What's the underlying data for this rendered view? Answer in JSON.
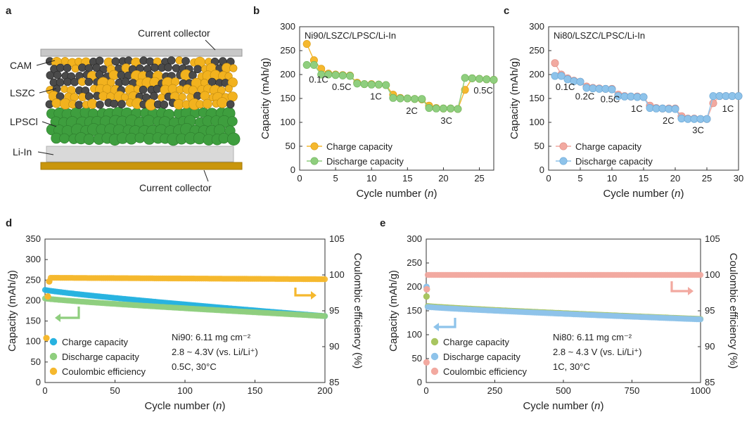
{
  "panel_letters": {
    "a": "a",
    "b": "b",
    "c": "c",
    "d": "d",
    "e": "e"
  },
  "schematic": {
    "label_top": "Current collector",
    "label_cam": "CAM",
    "label_lszc": "LSZC",
    "label_lpscl": "LPSCl",
    "label_liin": "Li-In",
    "label_bottom": "Current collector",
    "colors": {
      "cam": "#4a4a4a",
      "lszc": "#f2b21e",
      "lpscl": "#3e9e3e",
      "liin": "#d6d6d6",
      "collector_top": "#c8c8c8",
      "collector_bottom": "#c9960c"
    }
  },
  "colors": {
    "orange_marker": "#f5b82e",
    "green_marker": "#8fce7e",
    "pink_marker": "#f2a9a0",
    "blue_marker": "#8ec3ea",
    "cyan_marker": "#27b2e0",
    "olive_marker": "#a8c560",
    "arrow_green": "#8fce7e",
    "arrow_orange": "#f5b82e",
    "arrow_blue": "#8ec3ea",
    "arrow_pink": "#f2a9a0"
  },
  "chart_data": [
    {
      "id": "b",
      "type": "line",
      "xlabel": "Cycle number (n)",
      "ylabel": "Capacity (mAh/g)",
      "xlim": [
        0,
        27
      ],
      "ylim": [
        0,
        300
      ],
      "xticks": [
        0,
        5,
        10,
        15,
        20,
        25
      ],
      "yticks": [
        0,
        50,
        100,
        150,
        200,
        250,
        300
      ],
      "annotation": "Ni90/LSZC/LPSC/Li-In",
      "legend_position": "bottom-left",
      "series": [
        {
          "name": "Charge capacity",
          "color": "#f5b82e",
          "x": [
            1,
            2,
            3,
            4,
            5,
            6,
            7,
            8,
            9,
            10,
            11,
            12,
            13,
            14,
            15,
            16,
            17,
            18,
            19,
            20,
            21,
            22,
            23,
            24,
            25,
            26,
            27
          ],
          "y": [
            264,
            230,
            212,
            202,
            200,
            199,
            198,
            183,
            180,
            180,
            179,
            178,
            158,
            151,
            150,
            149,
            148,
            135,
            130,
            129,
            129,
            128,
            168,
            192,
            191,
            190,
            189
          ]
        },
        {
          "name": "Discharge capacity",
          "color": "#8fce7e",
          "x": [
            1,
            2,
            3,
            4,
            5,
            6,
            7,
            8,
            9,
            10,
            11,
            12,
            13,
            14,
            15,
            16,
            17,
            18,
            19,
            20,
            21,
            22,
            23,
            24,
            25,
            26,
            27
          ],
          "y": [
            220,
            220,
            200,
            200,
            199,
            198,
            197,
            181,
            180,
            179,
            179,
            178,
            151,
            150,
            150,
            149,
            149,
            130,
            129,
            129,
            129,
            128,
            193,
            192,
            191,
            190,
            189
          ]
        }
      ],
      "rate_labels": [
        {
          "text": "0.1C",
          "x": 1.3,
          "y": 183
        },
        {
          "text": "0.5C",
          "x": 4.5,
          "y": 168
        },
        {
          "text": "1C",
          "x": 9.8,
          "y": 148
        },
        {
          "text": "2C",
          "x": 14.8,
          "y": 118
        },
        {
          "text": "3C",
          "x": 19.6,
          "y": 97
        },
        {
          "text": "0.5C",
          "x": 24.2,
          "y": 160
        }
      ]
    },
    {
      "id": "c",
      "type": "line",
      "xlabel": "Cycle number (n)",
      "ylabel": "Capacity (mAh/g)",
      "xlim": [
        0,
        30
      ],
      "ylim": [
        0,
        300
      ],
      "xticks": [
        0,
        5,
        10,
        15,
        20,
        25,
        30
      ],
      "yticks": [
        0,
        50,
        100,
        150,
        200,
        250,
        300
      ],
      "annotation": "Ni80/LSZC/LPSC/Li-In",
      "legend_position": "bottom-left",
      "series": [
        {
          "name": "Charge capacity",
          "color": "#f2a9a0",
          "x": [
            1,
            2,
            3,
            4,
            5,
            6,
            7,
            8,
            9,
            10,
            11,
            12,
            13,
            14,
            15,
            16,
            17,
            18,
            19,
            20,
            21,
            22,
            23,
            24,
            25,
            26,
            27,
            28,
            29,
            30
          ],
          "y": [
            224,
            200,
            192,
            187,
            185,
            175,
            172,
            171,
            170,
            170,
            158,
            155,
            154,
            154,
            153,
            135,
            130,
            129,
            129,
            129,
            113,
            108,
            108,
            107,
            107,
            140,
            155,
            155,
            155,
            155
          ]
        },
        {
          "name": "Discharge capacity",
          "color": "#8ec3ea",
          "x": [
            1,
            2,
            3,
            4,
            5,
            6,
            7,
            8,
            9,
            10,
            11,
            12,
            13,
            14,
            15,
            16,
            17,
            18,
            19,
            20,
            21,
            22,
            23,
            24,
            25,
            26,
            27,
            28,
            29,
            30
          ],
          "y": [
            197,
            197,
            190,
            186,
            185,
            172,
            171,
            170,
            170,
            169,
            155,
            154,
            154,
            153,
            153,
            130,
            129,
            129,
            128,
            128,
            108,
            107,
            107,
            107,
            107,
            155,
            155,
            155,
            155,
            155
          ]
        }
      ],
      "rate_labels": [
        {
          "text": "0.1C",
          "x": 1.1,
          "y": 168
        },
        {
          "text": "0.2C",
          "x": 4.2,
          "y": 148
        },
        {
          "text": "0.5C",
          "x": 8.2,
          "y": 142
        },
        {
          "text": "1C",
          "x": 13.0,
          "y": 122
        },
        {
          "text": "2C",
          "x": 18.0,
          "y": 97
        },
        {
          "text": "3C",
          "x": 22.7,
          "y": 77
        },
        {
          "text": "1C",
          "x": 27.4,
          "y": 122
        }
      ]
    },
    {
      "id": "d",
      "type": "scatter",
      "xlabel": "Cycle number (n)",
      "ylabel": "Capacity (mAh/g)",
      "y2label": "Coulombic efficiency (%)",
      "xlim": [
        0,
        200
      ],
      "ylim": [
        0,
        350
      ],
      "y2lim": [
        85,
        105
      ],
      "xticks": [
        0,
        50,
        100,
        150,
        200
      ],
      "yticks": [
        0,
        50,
        100,
        150,
        200,
        250,
        300,
        350
      ],
      "y2ticks": [
        85,
        90,
        95,
        100,
        105
      ],
      "legend_position": "bottom-left",
      "notes": [
        "Ni90: 6.11 mg cm⁻²",
        "2.8 ~ 4.3V (vs. Li/Li⁺)",
        "0.5C, 30°C"
      ],
      "series": [
        {
          "name": "Charge capacity",
          "color": "#27b2e0",
          "axis": "left",
          "start": [
            0,
            226
          ],
          "end": [
            200,
            162
          ]
        },
        {
          "name": "Discharge capacity",
          "color": "#8fce7e",
          "axis": "left",
          "start": [
            0,
            205
          ],
          "end": [
            200,
            162
          ]
        },
        {
          "name": "Coulombic efficiency",
          "color": "#f5b82e",
          "axis": "right",
          "first_points": [
            [
              1,
              91.2
            ],
            [
              2,
              97.0
            ],
            [
              3,
              99.1
            ]
          ],
          "start": [
            4,
            99.6
          ],
          "end": [
            200,
            99.4
          ]
        }
      ]
    },
    {
      "id": "e",
      "type": "scatter",
      "xlabel": "Cycle number (n)",
      "ylabel": "Capacity (mAh/g)",
      "y2label": "Coulombic efficiency (%)",
      "xlim": [
        0,
        1000
      ],
      "ylim": [
        0,
        300
      ],
      "y2lim": [
        85,
        105
      ],
      "xticks": [
        0,
        250,
        500,
        750,
        1000
      ],
      "yticks": [
        0,
        50,
        100,
        150,
        200,
        250,
        300
      ],
      "y2ticks": [
        85,
        90,
        95,
        100,
        105
      ],
      "legend_position": "bottom-left",
      "notes": [
        "Ni80: 6.11 mg cm⁻²",
        "2.8 ~ 4.3 V (vs. Li/Li⁺)",
        "1C, 30°C"
      ],
      "series": [
        {
          "name": "Charge capacity",
          "color": "#a8c560",
          "axis": "left",
          "first_points": [
            [
              1,
              180
            ],
            [
              2,
              195
            ]
          ],
          "start": [
            5,
            160
          ],
          "end": [
            1000,
            133
          ]
        },
        {
          "name": "Discharge capacity",
          "color": "#8ec3ea",
          "axis": "left",
          "first_points": [
            [
              1,
              200
            ]
          ],
          "start": [
            5,
            158
          ],
          "end": [
            1000,
            132
          ]
        },
        {
          "name": "Coulombic efficiency",
          "color": "#f2a9a0",
          "axis": "right",
          "first_points": [
            [
              1,
              87.8
            ],
            [
              2,
              98.0
            ]
          ],
          "start": [
            5,
            100.0
          ],
          "end": [
            1000,
            100.0
          ]
        }
      ]
    }
  ]
}
